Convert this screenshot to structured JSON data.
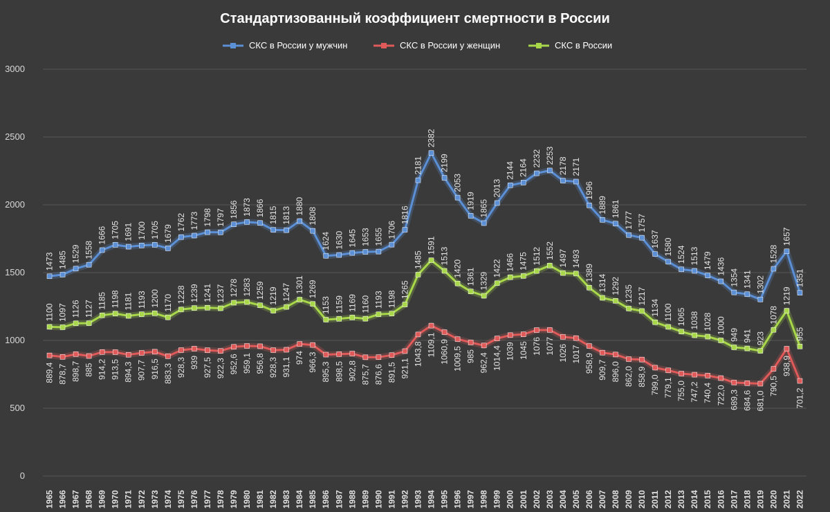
{
  "chart_data": {
    "type": "line",
    "title": "Стандартизованный коэффициент смертности в России",
    "xlabel": "",
    "ylabel": "",
    "ylim": [
      0,
      3000
    ],
    "yticks": [
      "0",
      "500",
      "1000",
      "1500",
      "2000",
      "2500",
      "3000"
    ],
    "ytick_values": [
      0,
      500,
      1000,
      1500,
      2000,
      2500,
      3000
    ],
    "legend_position": "top",
    "grid": true,
    "x": [
      "1965",
      "1966",
      "1967",
      "1968",
      "1969",
      "1970",
      "1971",
      "1972",
      "1973",
      "1974",
      "1975",
      "1976",
      "1977",
      "1978",
      "1979",
      "1980",
      "1981",
      "1982",
      "1983",
      "1984",
      "1985",
      "1986",
      "1987",
      "1988",
      "1989",
      "1990",
      "1991",
      "1992",
      "1993",
      "1994",
      "1995",
      "1996",
      "1997",
      "1998",
      "1999",
      "2000",
      "2001",
      "2002",
      "2003",
      "2004",
      "2005",
      "2006",
      "2007",
      "2008",
      "2009",
      "2010",
      "2011",
      "2012",
      "2013",
      "2014",
      "2015",
      "2016",
      "2017",
      "2018",
      "2019",
      "2020",
      "2021",
      "2022"
    ],
    "series": [
      {
        "name": "СКС в России у мужчин",
        "color": "#5b8fd6",
        "values": [
          1473,
          1485,
          1529,
          1558,
          1666,
          1705,
          1691,
          1700,
          1705,
          1679,
          1762,
          1773,
          1798,
          1797,
          1856,
          1873,
          1866,
          1815,
          1813,
          1880,
          1808,
          1624,
          1630,
          1645,
          1653,
          1655,
          1706,
          1816,
          2181,
          2382,
          2199,
          2053,
          1919,
          1865,
          2013,
          2144,
          2164,
          2232,
          2253,
          2178,
          2171,
          1996,
          1889,
          1861,
          1777,
          1757,
          1637,
          1580,
          1524,
          1513,
          1479,
          1436,
          1354,
          1341,
          1302,
          1528,
          1657,
          1351
        ],
        "labels": [
          "1473",
          "1485",
          "1529",
          "1558",
          "1666",
          "1705",
          "1691",
          "1700",
          "1705",
          "1679",
          "1762",
          "1773",
          "1798",
          "1797",
          "1856",
          "1873",
          "1866",
          "1815",
          "1813",
          "1880",
          "1808",
          "1624",
          "1630",
          "1645",
          "1653",
          "1655",
          "1706",
          "1816",
          "2181",
          "2382",
          "2199",
          "2053",
          "1919",
          "1865",
          "2013",
          "2144",
          "2164",
          "2232",
          "2253",
          "2178",
          "2171",
          "1996",
          "1889",
          "1861",
          "1777",
          "1757",
          "1637",
          "1580",
          "1524",
          "1513",
          "1479",
          "1436",
          "1354",
          "1341",
          "1302",
          "1528",
          "1657",
          "1351"
        ]
      },
      {
        "name": "СКС в России у женщин",
        "color": "#e05a5a",
        "values": [
          889.4,
          878.7,
          898.7,
          885,
          914.2,
          913.5,
          894.3,
          907.7,
          916.5,
          883.3,
          928.3,
          939,
          927.5,
          922.3,
          952.6,
          959.1,
          956.8,
          928.3,
          931.1,
          974,
          966.3,
          895.3,
          898.5,
          902.8,
          875.7,
          876.6,
          891.5,
          921.1,
          1043.8,
          1109.1,
          1060.9,
          1009.5,
          985,
          962.4,
          1014.4,
          1039,
          1045,
          1076,
          1077,
          1026,
          1017,
          958.9,
          909.7,
          896.0,
          862.0,
          858.9,
          799.0,
          779.1,
          755.0,
          747.2,
          740.4,
          722.0,
          689.3,
          684.6,
          681.0,
          790.5,
          938.9,
          701.2
        ],
        "labels": [
          "889,4",
          "878,7",
          "898,7",
          "885",
          "914,2",
          "913,5",
          "894,3",
          "907,7",
          "916,5",
          "883,3",
          "928,3",
          "939",
          "927,5",
          "922,3",
          "952,6",
          "959,1",
          "956,8",
          "928,3",
          "931,1",
          "974",
          "966,3",
          "895,3",
          "898,5",
          "902,8",
          "875,7",
          "876,6",
          "891,5",
          "921,1",
          "1043,8",
          "1109,1",
          "1060,9",
          "1009,5",
          "985",
          "962,4",
          "1014,4",
          "1039",
          "1045",
          "1076",
          "1077",
          "1026",
          "1017",
          "958,9",
          "909,7",
          "896,0",
          "862,0",
          "858,9",
          "799,0",
          "779,1",
          "755,0",
          "747,2",
          "740,4",
          "722,0",
          "689,3",
          "684,6",
          "681,0",
          "790,5",
          "938,9",
          "701,2"
        ]
      },
      {
        "name": "СКС в России",
        "color": "#a8d84a",
        "values": [
          1100,
          1097,
          1126,
          1127,
          1185,
          1198,
          1181,
          1193,
          1200,
          1170,
          1228,
          1239,
          1241,
          1237,
          1278,
          1283,
          1259,
          1219,
          1247,
          1301,
          1269,
          1153,
          1159,
          1169,
          1160,
          1193,
          1198,
          1265,
          1485,
          1591,
          1513,
          1420,
          1361,
          1329,
          1422,
          1466,
          1475,
          1512,
          1552,
          1497,
          1493,
          1389,
          1314,
          1292,
          1235,
          1217,
          1134,
          1100,
          1065,
          1038,
          1028,
          1000,
          949,
          941,
          923,
          1078,
          1219,
          955
        ],
        "labels": [
          "1100",
          "1097",
          "1126",
          "1127",
          "1185",
          "1198",
          "1181",
          "1193",
          "1200",
          "1170",
          "1228",
          "1239",
          "1241",
          "1237",
          "1278",
          "1283",
          "1259",
          "1219",
          "1247",
          "1301",
          "1269",
          "1153",
          "1159",
          "1169",
          "1160",
          "1193",
          "1198",
          "1265",
          "1485",
          "1591",
          "1513",
          "1420",
          "1361",
          "1329",
          "1422",
          "1466",
          "1475",
          "1512",
          "1552",
          "1497",
          "1493",
          "1389",
          "1314",
          "1292",
          "1235",
          "1217",
          "1134",
          "1100",
          "1065",
          "1038",
          "1028",
          "1000",
          "949",
          "941",
          "923",
          "1078",
          "1219",
          "955"
        ]
      }
    ]
  }
}
